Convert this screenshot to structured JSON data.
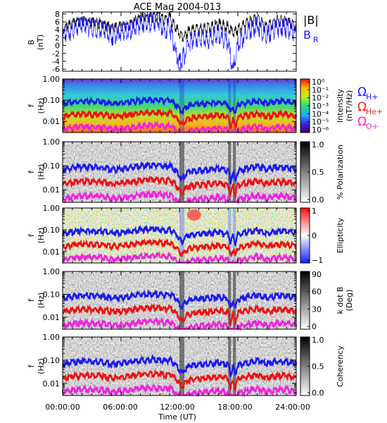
{
  "figure": {
    "title": "ACE Mag 2004-013",
    "xlabel": "Time (UT)",
    "xticks": [
      "00:00:00",
      "06:00:00",
      "12:00:00",
      "18:00:00",
      "24:00:00"
    ],
    "xlim_hours": [
      0,
      24
    ]
  },
  "colors": {
    "B_total": "#000000",
    "B_R": "#1a1aff",
    "H_plus": "#1a1aff",
    "He_plus": "#ff1a1a",
    "O_plus": "#ff22cc",
    "gyro_H_line": "#1a1aee",
    "gyro_He_line": "#ee1111",
    "gyro_O_line": "#ee22dd"
  },
  "chart_data": [
    {
      "type": "line",
      "panel": "field",
      "ylabel": "B",
      "yunit": "(nT)",
      "ylim": [
        -6.5,
        8.5
      ],
      "yticks": [
        "8",
        "6",
        "4",
        "2",
        "0",
        "-2",
        "-4",
        "-6"
      ],
      "legend": [
        "|B|",
        "B",
        "R"
      ],
      "x_hours": [
        0,
        1,
        2,
        3,
        4,
        5,
        6,
        7,
        8,
        9,
        10,
        10.5,
        11,
        11.5,
        12,
        12.5,
        13,
        14,
        15,
        16,
        17,
        17.5,
        18,
        19,
        20,
        21,
        22,
        23,
        24
      ],
      "series": [
        {
          "key": "B_total",
          "values": [
            4.8,
            6.3,
            7.1,
            6.4,
            6.5,
            5.0,
            5.4,
            6.2,
            7.8,
            7.9,
            8.1,
            7.0,
            8.0,
            5.5,
            4.0,
            3.0,
            4.5,
            5.0,
            5.2,
            6.2,
            5.5,
            4.0,
            4.8,
            6.5,
            7.5,
            5.5,
            7.0,
            6.8,
            5.5
          ]
        },
        {
          "key": "B_R",
          "values": [
            4.0,
            5.5,
            6.5,
            6.0,
            5.8,
            4.0,
            5.0,
            5.5,
            7.0,
            7.3,
            7.6,
            5.0,
            6.5,
            1.0,
            -3.0,
            -1.0,
            2.5,
            3.5,
            3.0,
            4.5,
            2.0,
            -5.0,
            2.0,
            5.0,
            6.5,
            4.0,
            6.0,
            6.0,
            4.5
          ]
        }
      ]
    },
    {
      "type": "heatmap",
      "panel": "intensity",
      "ylabel": "f",
      "yunit": "(Hz)",
      "ylim": [
        0.003,
        1.0
      ],
      "yscale": "log",
      "yticks": [
        "1.00",
        "0.10",
        "0.01"
      ],
      "colorbar_label": "Intensity",
      "colorbar_unit": "(nT²/Hz)",
      "colorbar_ticks": [
        "10⁰",
        "10⁻¹",
        "10⁻²",
        "10⁻³",
        "10⁻⁴",
        "10⁻⁵",
        "10⁻⁶"
      ],
      "colorbar_range_log10": [
        -6,
        0
      ],
      "gyro_legend": [
        {
          "symbol": "Ω",
          "sub": "H+",
          "key": "H_plus"
        },
        {
          "symbol": "Ω",
          "sub": "He+",
          "key": "He_plus"
        },
        {
          "symbol": "Ω",
          "sub": "O+",
          "key": "O_plus"
        }
      ]
    },
    {
      "type": "heatmap",
      "panel": "polarization",
      "ylabel": "f",
      "yunit": "(Hz)",
      "ylim": [
        0.003,
        1.0
      ],
      "yscale": "log",
      "yticks": [
        "1.00",
        "0.10",
        "0.01"
      ],
      "colorbar_label": "% Polarization",
      "colorbar_ticks": [
        "1.0",
        "0.5",
        "0.0"
      ],
      "colorbar_range": [
        0,
        1
      ]
    },
    {
      "type": "heatmap",
      "panel": "ellipticity",
      "ylabel": "f",
      "yunit": "(Hz)",
      "ylim": [
        0.003,
        1.0
      ],
      "yscale": "log",
      "yticks": [
        "1.00",
        "0.10",
        "0.01"
      ],
      "colorbar_label": "Ellipticity",
      "colorbar_ticks": [
        "1",
        "0",
        "−1"
      ],
      "colorbar_range": [
        -1,
        1
      ]
    },
    {
      "type": "heatmap",
      "panel": "kdotb",
      "ylabel": "f",
      "yunit": "(Hz)",
      "ylim": [
        0.003,
        1.0
      ],
      "yscale": "log",
      "yticks": [
        "1.00",
        "0.10",
        "0.01"
      ],
      "colorbar_label": "k dot B",
      "colorbar_unit": "(Deg)",
      "colorbar_ticks": [
        "90",
        "60",
        "30",
        "0"
      ],
      "colorbar_range": [
        0,
        90
      ]
    },
    {
      "type": "heatmap",
      "panel": "coherency",
      "ylabel": "f",
      "yunit": "(Hz)",
      "ylim": [
        0.003,
        1.0
      ],
      "yscale": "log",
      "yticks": [
        "1.00",
        "0.10",
        "0.01"
      ],
      "colorbar_label": "Coherency",
      "colorbar_ticks": [
        "1.0",
        "0.5",
        "0.0"
      ],
      "colorbar_range": [
        0,
        1
      ]
    }
  ],
  "gyrofrequencies": {
    "x_hours": [
      0,
      1,
      2,
      3,
      4,
      5,
      6,
      7,
      8,
      9,
      10,
      10.5,
      11,
      11.5,
      12,
      12.25,
      12.5,
      13,
      14,
      15,
      16,
      17,
      17.25,
      17.5,
      17.75,
      18,
      19,
      20,
      21,
      22,
      23,
      24
    ],
    "H_plus_hz": [
      0.075,
      0.095,
      0.105,
      0.1,
      0.1,
      0.08,
      0.085,
      0.095,
      0.115,
      0.12,
      0.12,
      0.105,
      0.12,
      0.08,
      0.045,
      0.03,
      0.045,
      0.065,
      0.075,
      0.08,
      0.09,
      0.075,
      0.025,
      0.06,
      0.025,
      0.07,
      0.09,
      0.11,
      0.08,
      0.1,
      0.1,
      0.08
    ]
  }
}
